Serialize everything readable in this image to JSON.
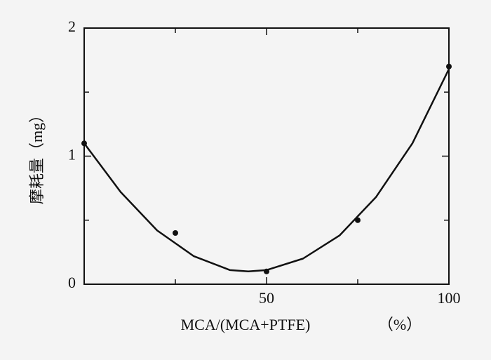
{
  "chart_data": {
    "type": "scatter",
    "x_label": "MCA/(MCA+PTFE)",
    "x_unit": "（%）",
    "y_label": "摩耗量（mg）",
    "xlim": [
      0,
      100
    ],
    "ylim": [
      0,
      2
    ],
    "xticks": [
      50,
      100
    ],
    "xminor_ticks": [
      25,
      75
    ],
    "yticks": [
      0,
      1,
      2
    ],
    "yminor_ticks": [
      0.5,
      1.5
    ],
    "color": "#111111",
    "series": [
      {
        "type": "scatter",
        "x": [
          0,
          25,
          50,
          75,
          100
        ],
        "values": [
          1.1,
          0.4,
          0.1,
          0.5,
          1.7
        ]
      },
      {
        "type": "line",
        "x": [
          0,
          10,
          20,
          30,
          40,
          45,
          50,
          60,
          70,
          80,
          90,
          100
        ],
        "values": [
          1.1,
          0.72,
          0.42,
          0.22,
          0.11,
          0.1,
          0.11,
          0.2,
          0.38,
          0.68,
          1.1,
          1.68
        ]
      }
    ]
  }
}
